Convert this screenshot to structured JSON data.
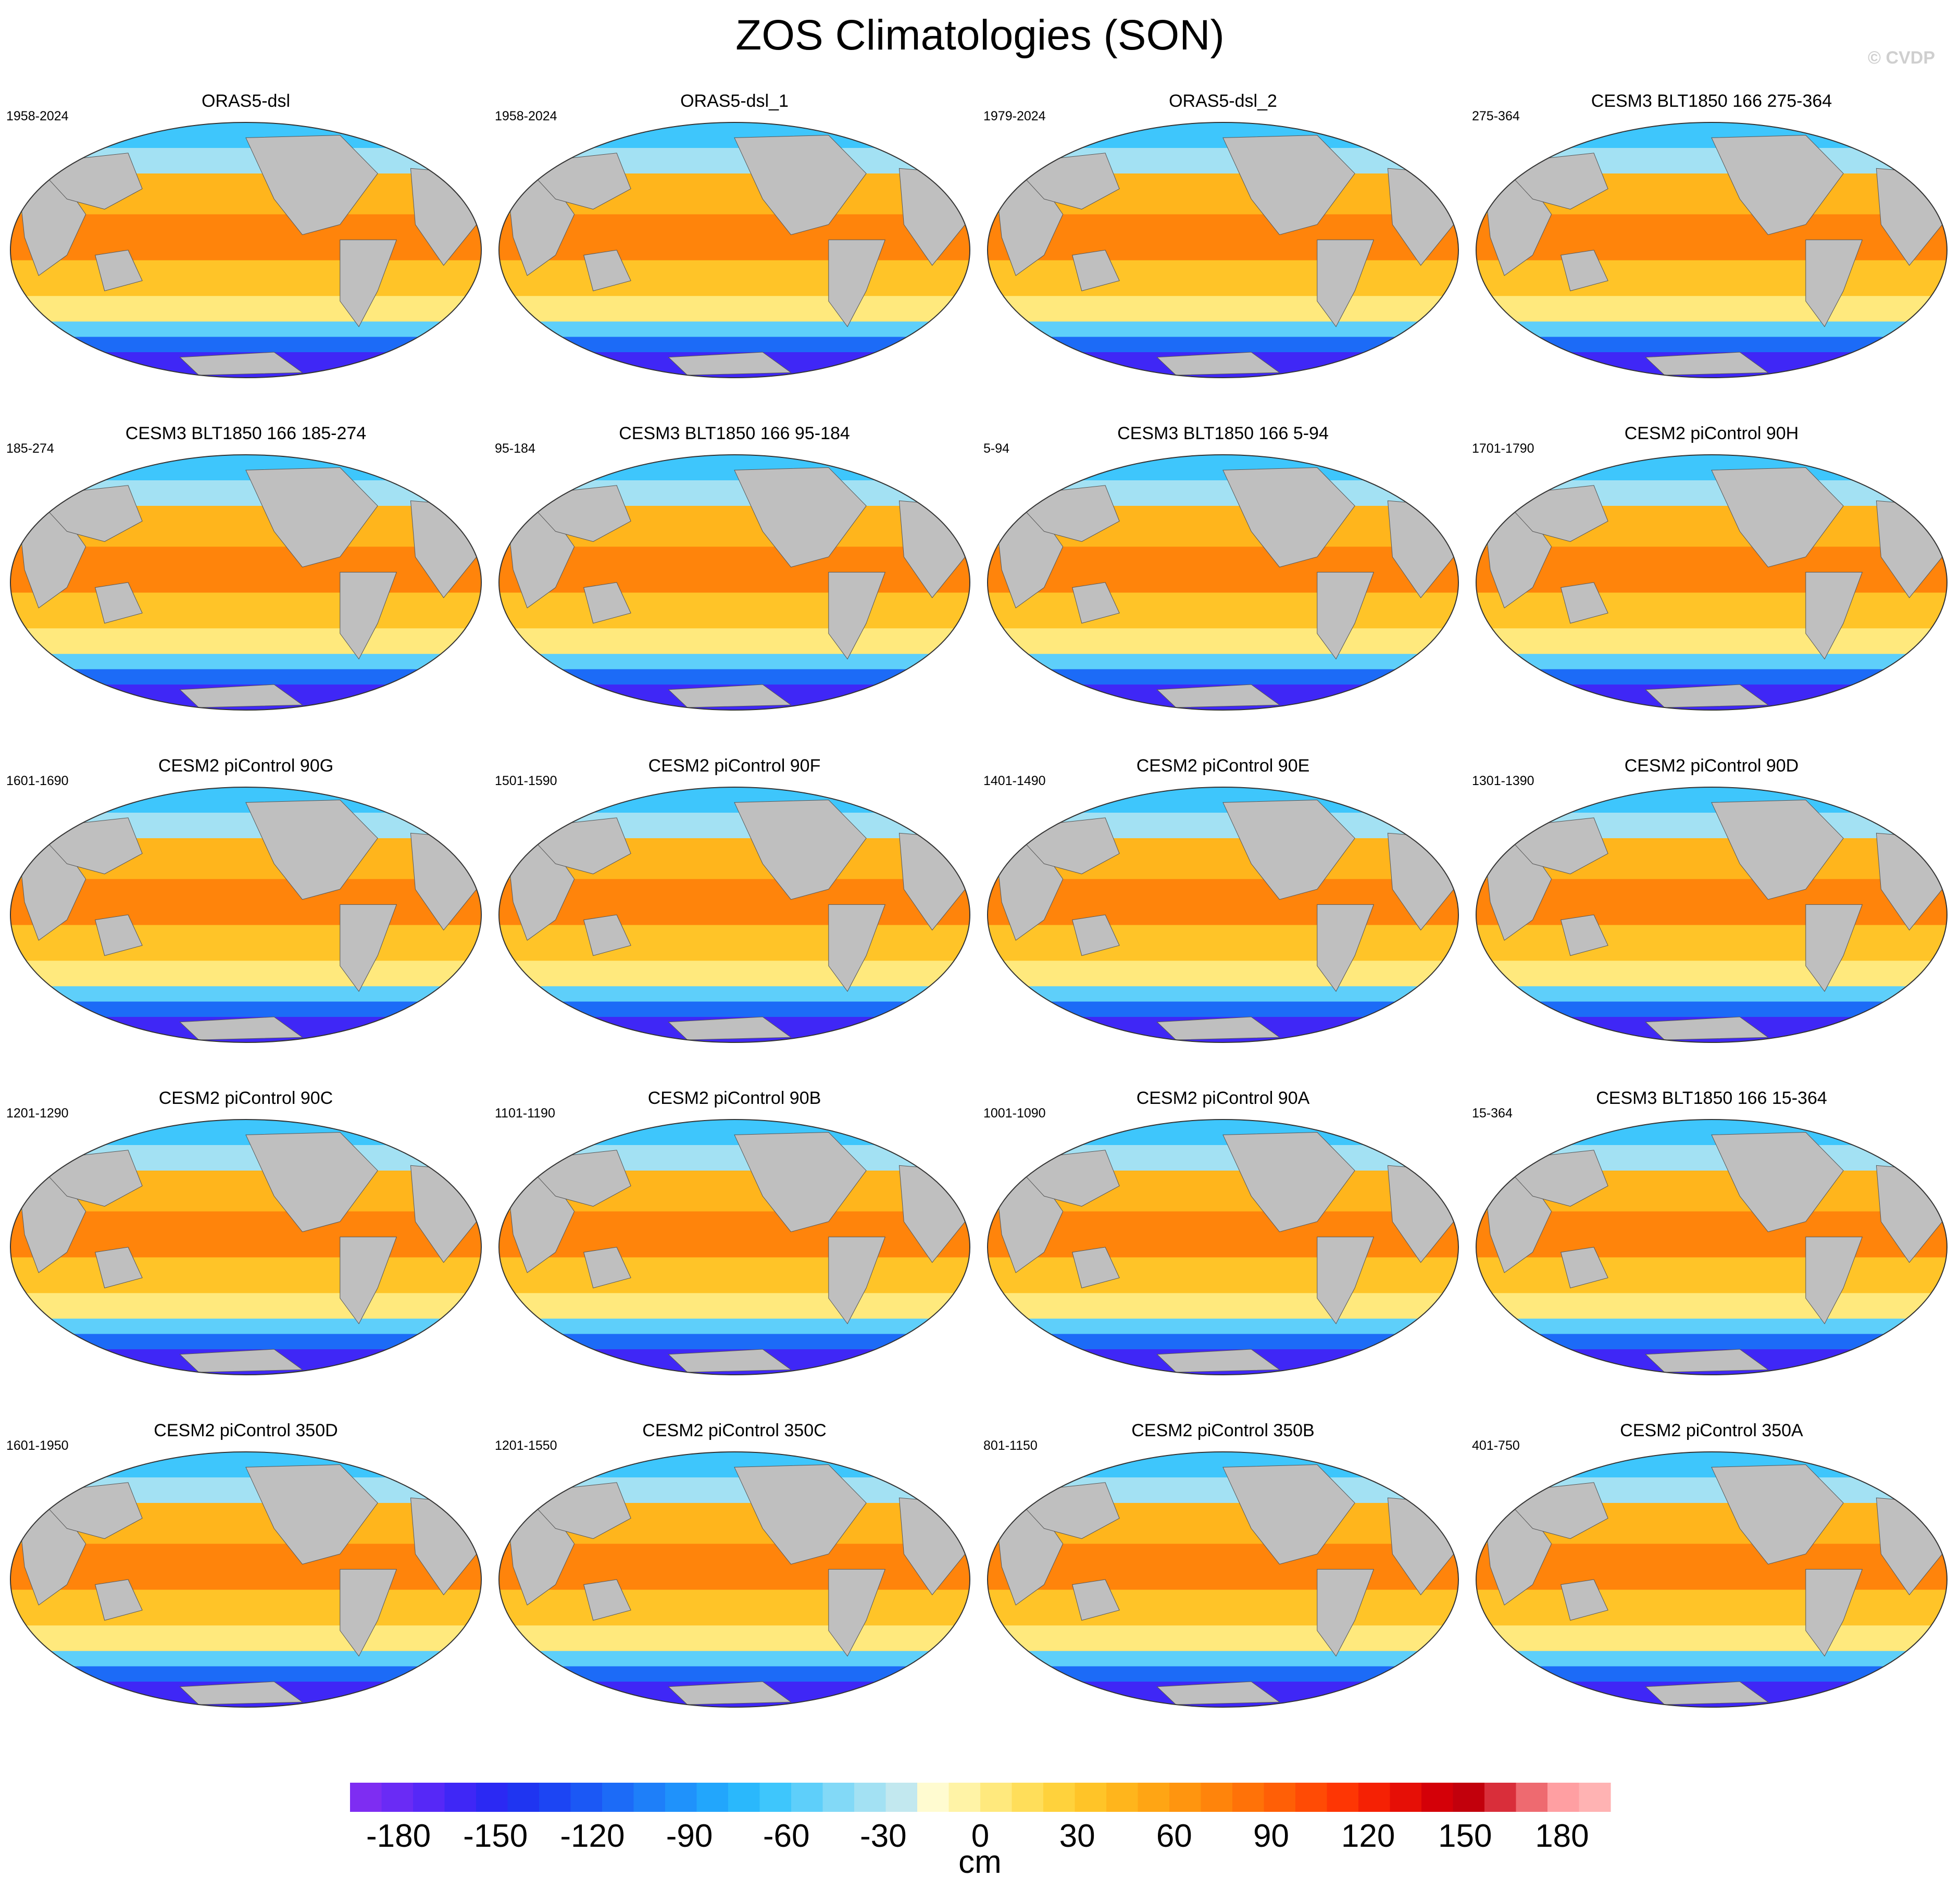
{
  "header": {
    "title": "ZOS Climatologies (SON)",
    "watermark": "© CVDP"
  },
  "colors": {
    "land": "#bfbfbf",
    "ocean_low": "#7f3fff",
    "ocean_high": "#ffb3b3"
  },
  "chart_data": {
    "type": "heatmap",
    "variable": "ZOS",
    "season": "SON",
    "units": "cm",
    "colorbar": {
      "ticks": [
        -180,
        -150,
        -120,
        -90,
        -60,
        -30,
        0,
        30,
        60,
        90,
        120,
        150,
        180
      ],
      "tick_labels": [
        "-180",
        "-150",
        "-120",
        "-90",
        "-60",
        "-30",
        "0",
        "30",
        "60",
        "90",
        "120",
        "150",
        "180"
      ],
      "range": [
        -195,
        195
      ],
      "interval": 10,
      "colors": [
        "#7e2df2",
        "#6a2bf5",
        "#5628f7",
        "#3f27f6",
        "#2b29f3",
        "#1f35f1",
        "#1c45f3",
        "#1b58f5",
        "#1c6bf7",
        "#1e7ff9",
        "#1f92fb",
        "#22a6fc",
        "#2ab8fc",
        "#3ec6fc",
        "#5ecffa",
        "#82d9f7",
        "#a3e1f3",
        "#c2e8ef",
        "#fffbd0",
        "#fff3a6",
        "#ffe97d",
        "#ffde5a",
        "#ffd23c",
        "#ffc428",
        "#ffb51c",
        "#ffa514",
        "#ff950f",
        "#ff840b",
        "#ff7208",
        "#ff5f06",
        "#ff4b05",
        "#fe3604",
        "#f52104",
        "#e60f06",
        "#d40008",
        "#c2000c",
        "#d92e3a",
        "#ee6a70",
        "#ff9fa2",
        "#ffb3b3"
      ]
    },
    "panels": [
      {
        "title": "ORAS5-dsl",
        "period": "1958-2024"
      },
      {
        "title": "ORAS5-dsl_1",
        "period": "1958-2024"
      },
      {
        "title": "ORAS5-dsl_2",
        "period": "1979-2024"
      },
      {
        "title": "CESM3 BLT1850 166 275-364",
        "period": "275-364"
      },
      {
        "title": "CESM3 BLT1850 166 185-274",
        "period": "185-274"
      },
      {
        "title": "CESM3 BLT1850 166 95-184",
        "period": "95-184"
      },
      {
        "title": "CESM3 BLT1850 166 5-94",
        "period": "5-94"
      },
      {
        "title": "CESM2 piControl 90H",
        "period": "1701-1790"
      },
      {
        "title": "CESM2 piControl 90G",
        "period": "1601-1690"
      },
      {
        "title": "CESM2 piControl 90F",
        "period": "1501-1590"
      },
      {
        "title": "CESM2 piControl 90E",
        "period": "1401-1490"
      },
      {
        "title": "CESM2 piControl 90D",
        "period": "1301-1390"
      },
      {
        "title": "CESM2 piControl 90C",
        "period": "1201-1290"
      },
      {
        "title": "CESM2 piControl 90B",
        "period": "1101-1190"
      },
      {
        "title": "CESM2 piControl 90A",
        "period": "1001-1090"
      },
      {
        "title": "CESM3 BLT1850 166 15-364",
        "period": "15-364"
      },
      {
        "title": "CESM2 piControl 350D",
        "period": "1601-1950"
      },
      {
        "title": "CESM2 piControl 350C",
        "period": "1201-1550"
      },
      {
        "title": "CESM2 piControl 350B",
        "period": "801-1150"
      },
      {
        "title": "CESM2 piControl 350A",
        "period": "401-750"
      }
    ]
  }
}
